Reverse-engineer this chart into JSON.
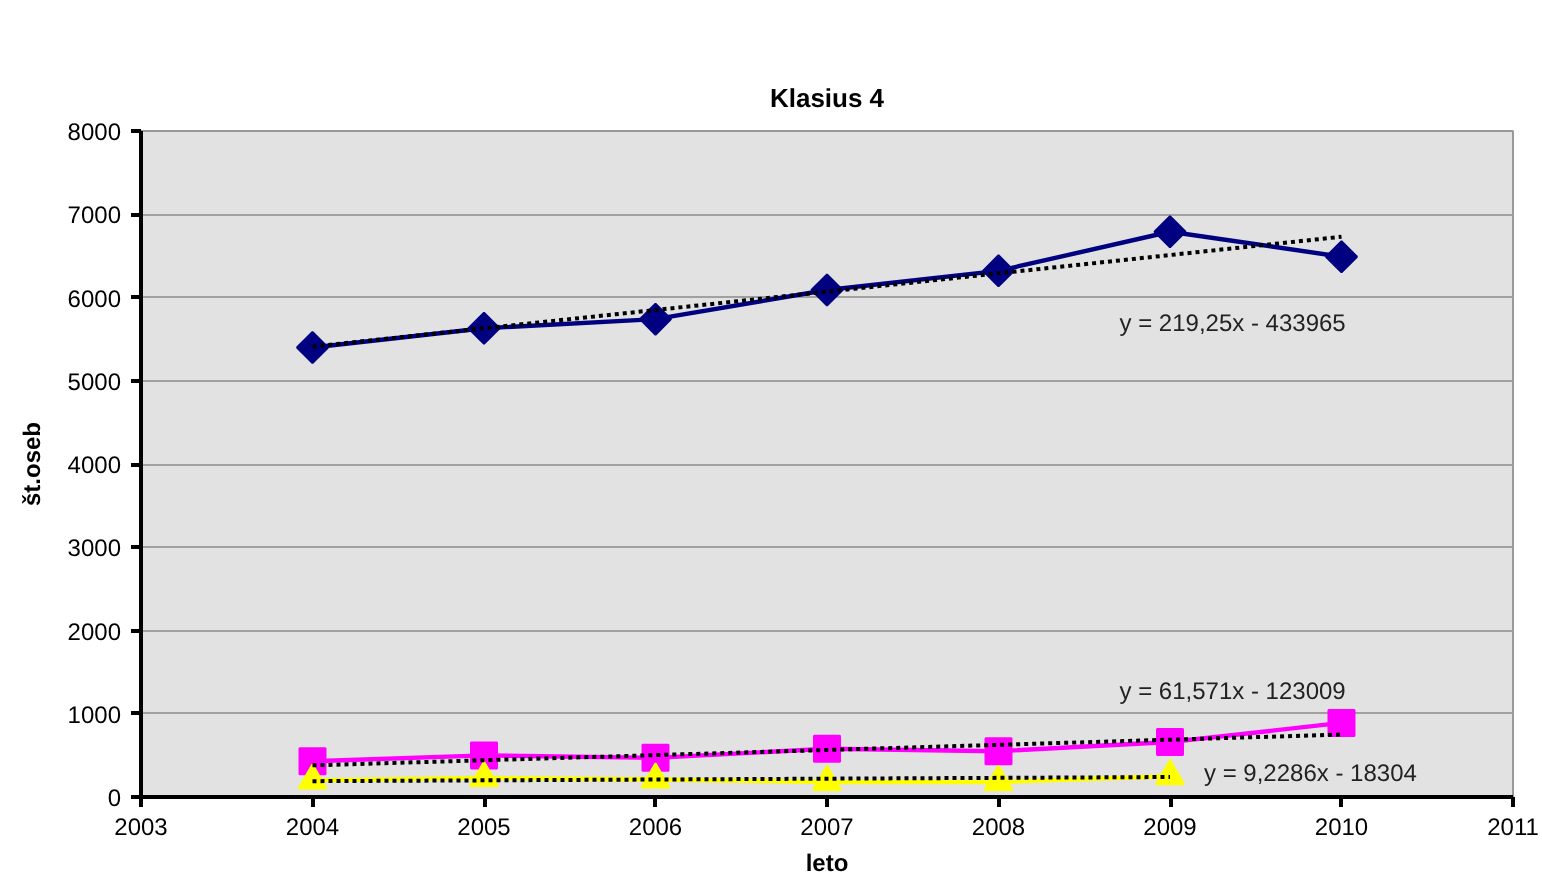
{
  "chart_data": {
    "type": "line",
    "title": "Klasius 4",
    "xlabel": "leto",
    "ylabel": "št.oseb",
    "x": [
      2004,
      2005,
      2006,
      2007,
      2008,
      2009,
      2010
    ],
    "series": [
      {
        "color": "#000080",
        "marker": "diamond",
        "values": [
          5400,
          5630,
          5740,
          6090,
          6320,
          6790,
          6490
        ]
      },
      {
        "color": "#ff00ff",
        "marker": "square",
        "values": [
          430,
          500,
          470,
          580,
          550,
          660,
          890
        ]
      },
      {
        "color": "#ffff00",
        "marker": "triangle",
        "values": [
          200,
          230,
          210,
          180,
          180,
          250,
          null
        ]
      },
      {
        "type": "line",
        "color": "#000000",
        "line_style": "dotted",
        "marker": "none",
        "x": [
          2004,
          2010
        ],
        "values": [
          5410,
          6730
        ]
      },
      {
        "type": "line",
        "color": "#000000",
        "line_style": "dotted",
        "marker": "none",
        "x": [
          2004,
          2010
        ],
        "values": [
          380,
          750
        ]
      },
      {
        "type": "line",
        "color": "#000000",
        "line_style": "dotted",
        "marker": "none",
        "x": [
          2004,
          2009
        ],
        "values": [
          190,
          240
        ]
      }
    ],
    "xlim": [
      2003,
      2011
    ],
    "ylim": [
      0,
      8000
    ],
    "xticks": [
      2003,
      2004,
      2005,
      2006,
      2007,
      2008,
      2009,
      2010,
      2011
    ],
    "yticks": [
      0,
      1000,
      2000,
      3000,
      4000,
      5000,
      6000,
      7000,
      8000
    ],
    "grid": "y",
    "line_style": "solid",
    "annotations": [
      "y = 219,25x - 433965",
      "y = 61,571x - 123009",
      "y = 9,2286x - 18304"
    ]
  }
}
